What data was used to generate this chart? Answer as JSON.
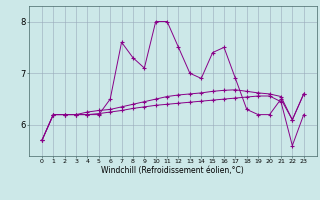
{
  "xlabel": "Windchill (Refroidissement éolien,°C)",
  "bg_color": "#cce8e8",
  "line_color": "#880088",
  "grid_color": "#99aabb",
  "x_values": [
    0,
    1,
    2,
    3,
    4,
    5,
    6,
    7,
    8,
    9,
    10,
    11,
    12,
    13,
    14,
    15,
    16,
    17,
    18,
    19,
    20,
    21,
    22,
    23
  ],
  "series1": [
    5.7,
    6.2,
    6.2,
    6.2,
    6.2,
    6.2,
    6.5,
    7.6,
    7.3,
    7.1,
    8.0,
    8.0,
    7.5,
    7.0,
    6.9,
    7.4,
    7.5,
    6.9,
    6.3,
    6.2,
    6.2,
    6.5,
    6.1,
    6.6
  ],
  "series2": [
    5.7,
    6.2,
    6.2,
    6.2,
    6.25,
    6.28,
    6.3,
    6.35,
    6.4,
    6.45,
    6.5,
    6.55,
    6.58,
    6.6,
    6.62,
    6.65,
    6.67,
    6.68,
    6.65,
    6.62,
    6.6,
    6.55,
    6.1,
    6.6
  ],
  "series3": [
    5.7,
    6.2,
    6.2,
    6.2,
    6.2,
    6.22,
    6.25,
    6.28,
    6.32,
    6.35,
    6.38,
    6.4,
    6.42,
    6.44,
    6.46,
    6.48,
    6.5,
    6.52,
    6.54,
    6.56,
    6.56,
    6.45,
    5.6,
    6.2
  ],
  "ylim": [
    5.4,
    8.3
  ],
  "ytick_positions": [
    6,
    7,
    8
  ],
  "ytick_labels": [
    "6",
    "7",
    "8"
  ],
  "xticks": [
    0,
    1,
    2,
    3,
    4,
    5,
    6,
    7,
    8,
    9,
    10,
    11,
    12,
    13,
    14,
    15,
    16,
    17,
    18,
    19,
    20,
    21,
    22,
    23
  ]
}
